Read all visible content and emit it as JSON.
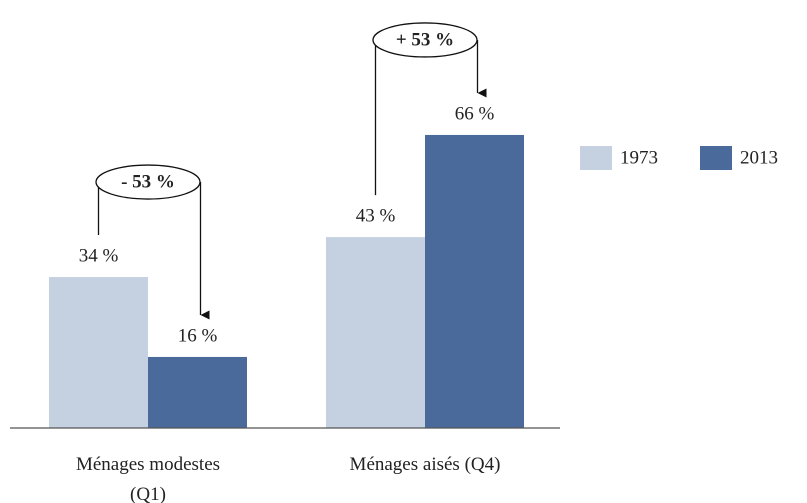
{
  "chart_data": {
    "type": "bar",
    "categories": [
      "Ménages modestes (Q1)",
      "Ménages aisés (Q4)"
    ],
    "series": [
      {
        "name": "1973",
        "color": "#c5d0e1",
        "values": [
          34,
          43
        ],
        "value_labels": [
          "34 %",
          "43 %"
        ]
      },
      {
        "name": "2013",
        "color": "#4a6a9b",
        "values": [
          16,
          66
        ],
        "value_labels": [
          "16 %",
          "66 %"
        ]
      }
    ],
    "annotations": [
      "- 53 %",
      "+ 53 %"
    ],
    "legend": "right"
  }
}
